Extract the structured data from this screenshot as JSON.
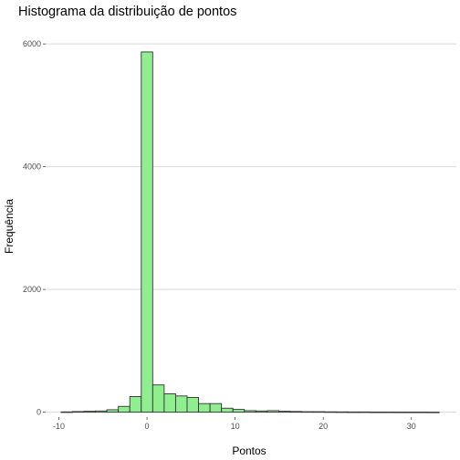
{
  "chart_data": {
    "type": "bar",
    "title": "Histograma da distribuição de pontos",
    "xlabel": "Pontos",
    "ylabel": "Frequência",
    "bin_width": 1.3,
    "bin_starts": [
      -9.75,
      -8.45,
      -7.15,
      -5.85,
      -4.55,
      -3.25,
      -1.95,
      -0.65,
      0.65,
      1.95,
      3.25,
      4.55,
      5.85,
      7.15,
      8.45,
      9.75,
      11.05,
      12.35,
      13.65,
      14.95,
      16.25,
      17.55,
      18.85,
      20.15,
      21.45,
      22.75,
      24.05,
      25.35,
      26.65,
      27.95,
      29.25,
      30.55,
      31.85
    ],
    "values": [
      5,
      10,
      15,
      20,
      40,
      95,
      255,
      5870,
      445,
      300,
      265,
      240,
      140,
      140,
      65,
      45,
      25,
      20,
      25,
      15,
      12,
      8,
      8,
      6,
      5,
      4,
      4,
      3,
      3,
      2,
      2,
      2,
      1
    ],
    "xlim": [
      -11.5,
      35.1
    ],
    "ylim": [
      -80,
      6300
    ],
    "x_ticks": [
      -10,
      0,
      10,
      20,
      30
    ],
    "x_tick_labels": [
      "-10",
      "0",
      "10",
      "20",
      "30"
    ],
    "y_ticks": [
      0,
      2000,
      4000,
      6000
    ],
    "y_tick_labels": [
      "0",
      "2000",
      "4000",
      "6000"
    ],
    "grid": "horizontal",
    "fill_color": "#90ee90",
    "edge_color": "#333333"
  }
}
